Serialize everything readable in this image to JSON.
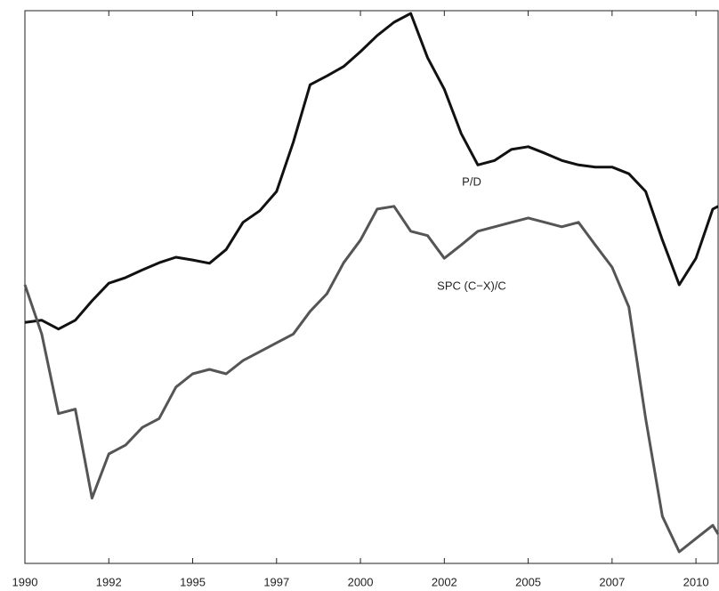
{
  "chart_data": {
    "type": "line",
    "annotations": [
      "P/D",
      "SPC (C−X)/C"
    ],
    "x": [
      1990,
      1990.5,
      1991,
      1991.5,
      1992,
      1992.5,
      1993,
      1993.5,
      1994,
      1994.5,
      1995,
      1995.5,
      1996,
      1996.5,
      1997,
      1997.5,
      1998,
      1998.5,
      1999,
      1999.5,
      2000,
      2000.5,
      2001,
      2001.5,
      2002,
      2002.5,
      2003,
      2003.5,
      2004,
      2004.5,
      2005,
      2005.5,
      2006,
      2006.5,
      2007,
      2007.5,
      2008,
      2008.5,
      2009,
      2009.5,
      2010,
      2010.5,
      2010.66
    ],
    "series": [
      {
        "name": "P/D",
        "color": "#111111",
        "values": [
          43.6,
          44,
          42.4,
          44,
          47.5,
          50.7,
          51.7,
          53.1,
          54.4,
          55.4,
          54.9,
          54.3,
          56.8,
          61.7,
          63.8,
          67.3,
          76.2,
          86.6,
          88.2,
          89.9,
          92.6,
          95.5,
          97.9,
          99.5,
          91.5,
          85.8,
          77.8,
          72.1,
          72.9,
          74.9,
          75.4,
          74.2,
          72.9,
          72.1,
          71.7,
          71.7,
          70.5,
          67.3,
          58.5,
          50.4,
          55.2,
          64.1,
          64.6
        ]
      },
      {
        "name": "SPC (C−X)/C",
        "color": "#555555",
        "values": [
          50.4,
          41.5,
          27.1,
          27.9,
          11.8,
          19.8,
          21.4,
          24.6,
          26.2,
          31.9,
          34.3,
          35.1,
          34.3,
          36.7,
          38.3,
          39.9,
          41.5,
          45.6,
          48.8,
          54.4,
          58.5,
          64.1,
          64.6,
          60.1,
          59.3,
          55.2,
          57.6,
          60.1,
          60.9,
          61.7,
          62.5,
          61.7,
          60.9,
          61.7,
          57.6,
          53.6,
          46.4,
          26.2,
          8.5,
          2.1,
          4.5,
          6.9,
          5.3
        ]
      }
    ],
    "xlim": [
      1990,
      2010.66
    ],
    "xticks": [
      1990,
      {
        "value": 1992.5,
        "label": "1992"
      },
      1995,
      {
        "value": 1997.5,
        "label": "1997"
      },
      2000,
      {
        "value": 2002.5,
        "label": "2002"
      },
      2005,
      {
        "value": 2007.5,
        "label": "2007"
      },
      2010
    ],
    "ylim": [
      0,
      100
    ]
  }
}
